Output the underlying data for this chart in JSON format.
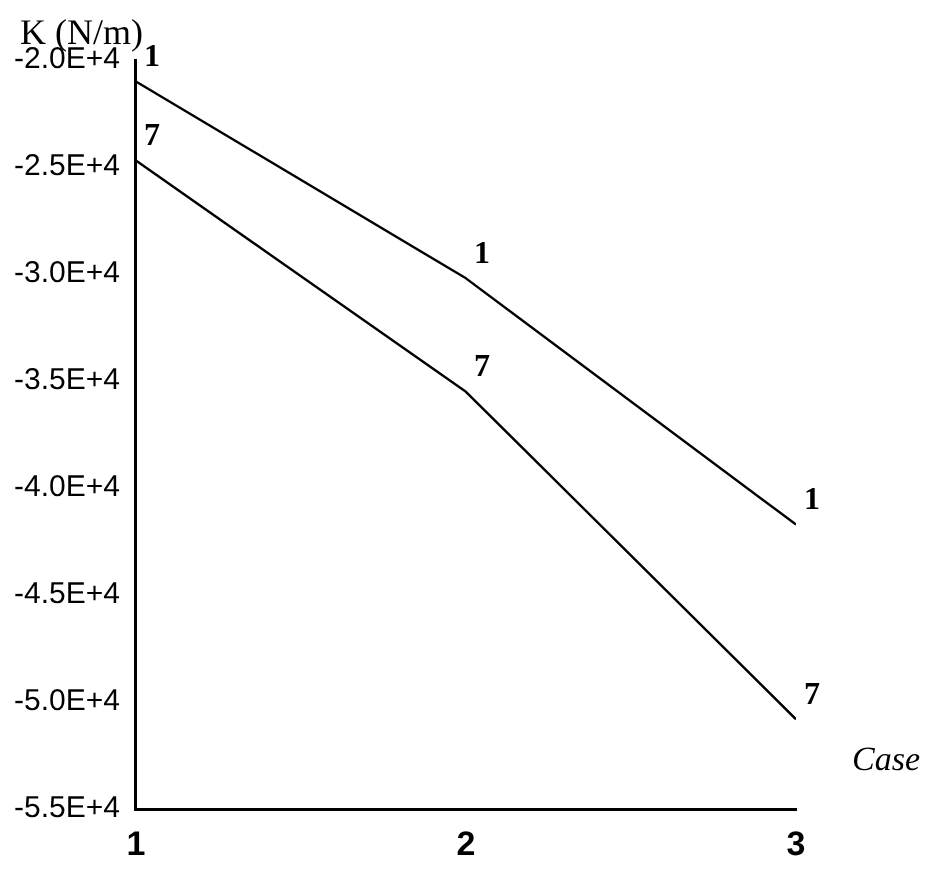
{
  "chart_data": {
    "type": "line",
    "xlabel": "Case",
    "ylabel": "K (N/m)",
    "x": [
      1,
      2,
      3
    ],
    "series": [
      {
        "name": "1",
        "color": "#000000",
        "values": [
          -21000,
          -30200,
          -41700
        ]
      },
      {
        "name": "7",
        "color": "#000000",
        "values": [
          -24700,
          -35500,
          -50800
        ]
      }
    ],
    "xlim": [
      1,
      3
    ],
    "xticks": [
      1,
      2,
      3
    ],
    "ylim": [
      -55000,
      -20000
    ],
    "yticks": [
      {
        "value": -55000,
        "label": "-5.5E+4"
      },
      {
        "value": -50000,
        "label": "-5.0E+4"
      },
      {
        "value": -45000,
        "label": "-4.5E+4"
      },
      {
        "value": -40000,
        "label": "-4.0E+4"
      },
      {
        "value": -35000,
        "label": "-3.5E+4"
      },
      {
        "value": -30000,
        "label": "-3.0E+4"
      },
      {
        "value": -25000,
        "label": "-2.5E+4"
      },
      {
        "value": -20000,
        "label": "-2.0E+4"
      }
    ],
    "grid": false,
    "legend": false,
    "marker": "none",
    "line_style": "solid"
  }
}
